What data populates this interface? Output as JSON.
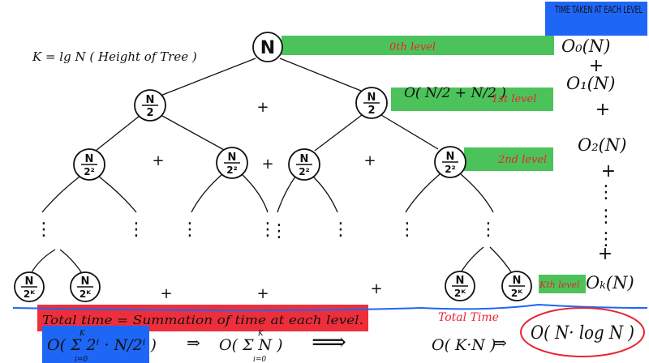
{
  "header_note": "TIME TAKEN AT EACH LEVEL",
  "height_note": "K = lg N ( Height of Tree )",
  "nodes": {
    "root": "N",
    "level1_num": "N",
    "level1_den": "2",
    "level2_num": "N",
    "level2_den": "2²",
    "bottom_num": "N",
    "bottom_den": "2ᴷ"
  },
  "level_labels": {
    "l0": "0th level",
    "l1": "1st level",
    "l2": "2nd level",
    "lk": "Kth level"
  },
  "level1_expr": "O( N/2 + N/2 )",
  "plus": "+",
  "vdots": "⋮",
  "side_terms": [
    "O₀(N)",
    "O₁(N)",
    "O₂(N)",
    "Oₖ(N)"
  ],
  "total_time_statement": "Total time = Summation of time at each level.",
  "total_time_label": "Total Time",
  "formula": {
    "sum_full": "O( Σ 2ⁱ · N/2ⁱ )",
    "sum_lower": "i=0",
    "sum_upper": "K",
    "arrow": "⇒",
    "sum_simple": "O( Σ N )",
    "long_arrow": "⟹",
    "kn": "O( K·N )",
    "result": "O( N· log N )"
  },
  "colors": {
    "green": "#4cc35a",
    "red_highlight": "#ee2f3b",
    "blue_highlight": "#1e66f5",
    "red_ink": "#e8242f",
    "ink": "#111111"
  }
}
